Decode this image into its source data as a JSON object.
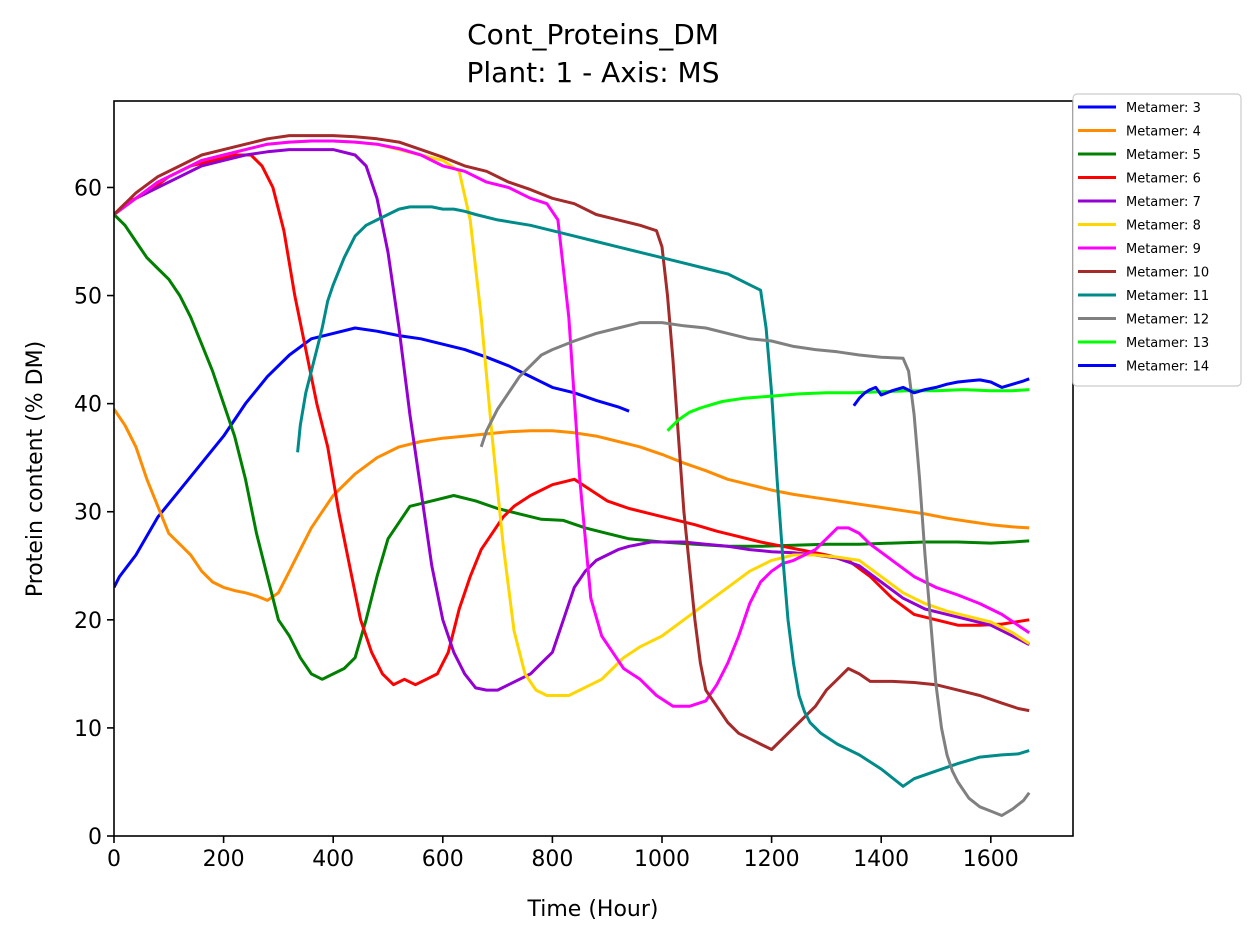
{
  "chart_data": {
    "type": "line",
    "title": "Cont_Proteins_DM",
    "subtitle": "Plant: 1 - Axis: MS",
    "xlabel": "Time (Hour)",
    "ylabel": "Protein content (% DM)",
    "xlim": [
      0,
      1750
    ],
    "ylim": [
      0,
      68
    ],
    "xticks": [
      0,
      200,
      400,
      600,
      800,
      1000,
      1200,
      1400,
      1600
    ],
    "yticks": [
      0,
      10,
      20,
      30,
      40,
      50,
      60
    ],
    "grid": false,
    "legend_position": "outside-top-right",
    "series": [
      {
        "name": "Metamer: 3",
        "color": "#0000ff",
        "x": [
          0,
          10,
          40,
          80,
          120,
          160,
          200,
          240,
          280,
          320,
          360,
          400,
          440,
          480,
          520,
          560,
          600,
          640,
          680,
          720,
          760,
          800,
          840,
          880,
          920,
          940
        ],
        "y": [
          23,
          24,
          26,
          29.5,
          32,
          34.5,
          37,
          40,
          42.5,
          44.5,
          46,
          46.5,
          47,
          46.7,
          46.3,
          46,
          45.5,
          45,
          44.3,
          43.5,
          42.5,
          41.5,
          41,
          40.3,
          39.7,
          39.3
        ]
      },
      {
        "name": "Metamer: 4",
        "color": "#ff8c00",
        "x": [
          0,
          20,
          40,
          60,
          80,
          100,
          120,
          140,
          160,
          180,
          200,
          220,
          240,
          260,
          280,
          300,
          320,
          340,
          360,
          380,
          400,
          440,
          480,
          520,
          560,
          600,
          640,
          680,
          720,
          760,
          800,
          840,
          880,
          920,
          960,
          1000,
          1040,
          1080,
          1120,
          1160,
          1200,
          1240,
          1280,
          1320,
          1360,
          1400,
          1440,
          1480,
          1520,
          1560,
          1600,
          1640,
          1670
        ],
        "y": [
          39.5,
          38,
          36,
          33,
          30.5,
          28,
          27,
          26,
          24.5,
          23.5,
          23,
          22.7,
          22.5,
          22.2,
          21.8,
          22.5,
          24.5,
          26.5,
          28.5,
          30,
          31.5,
          33.5,
          35,
          36,
          36.5,
          36.8,
          37,
          37.2,
          37.4,
          37.5,
          37.5,
          37.3,
          37,
          36.5,
          36,
          35.3,
          34.5,
          33.8,
          33,
          32.5,
          32,
          31.6,
          31.3,
          31,
          30.7,
          30.4,
          30.1,
          29.8,
          29.4,
          29.1,
          28.8,
          28.6,
          28.5
        ]
      },
      {
        "name": "Metamer: 5",
        "color": "#008000",
        "x": [
          0,
          20,
          40,
          60,
          80,
          100,
          120,
          140,
          160,
          180,
          200,
          220,
          240,
          260,
          280,
          300,
          320,
          340,
          360,
          380,
          400,
          420,
          440,
          460,
          480,
          500,
          540,
          580,
          620,
          660,
          700,
          740,
          780,
          820,
          860,
          900,
          940,
          1000,
          1060,
          1120,
          1180,
          1240,
          1300,
          1360,
          1420,
          1480,
          1540,
          1600,
          1640,
          1670
        ],
        "y": [
          57.5,
          56.5,
          55,
          53.5,
          52.5,
          51.5,
          50,
          48,
          45.5,
          43,
          40,
          37,
          33,
          28,
          24,
          20,
          18.5,
          16.5,
          15,
          14.5,
          15,
          15.5,
          16.5,
          20,
          24,
          27.5,
          30.5,
          31,
          31.5,
          31,
          30.3,
          29.8,
          29.3,
          29.2,
          28.5,
          28,
          27.5,
          27.2,
          27,
          26.8,
          26.8,
          26.9,
          27,
          27,
          27.1,
          27.2,
          27.2,
          27.1,
          27.2,
          27.3
        ]
      },
      {
        "name": "Metamer: 6",
        "color": "#ff0000",
        "x": [
          0,
          20,
          60,
          100,
          140,
          180,
          220,
          250,
          270,
          290,
          310,
          330,
          350,
          370,
          390,
          410,
          430,
          450,
          470,
          490,
          510,
          530,
          550,
          570,
          590,
          610,
          630,
          650,
          670,
          690,
          710,
          730,
          760,
          800,
          840,
          870,
          900,
          940,
          980,
          1020,
          1060,
          1100,
          1140,
          1180,
          1220,
          1260,
          1300,
          1340,
          1380,
          1420,
          1460,
          1500,
          1540,
          1580,
          1620,
          1670
        ],
        "y": [
          57.5,
          58.5,
          59.5,
          61,
          62,
          62.5,
          63,
          63,
          62,
          60,
          56,
          50,
          45,
          40,
          36,
          30,
          25,
          20,
          17,
          15,
          14,
          14.5,
          14,
          14.5,
          15,
          17,
          21,
          24,
          26.5,
          28,
          29.5,
          30.5,
          31.5,
          32.5,
          33,
          32,
          31,
          30.3,
          29.8,
          29.3,
          28.8,
          28.2,
          27.7,
          27.2,
          26.8,
          26.4,
          26,
          25.5,
          24,
          22,
          20.5,
          20,
          19.5,
          19.5,
          19.6,
          20
        ]
      },
      {
        "name": "Metamer: 7",
        "color": "#9400d3",
        "x": [
          0,
          40,
          80,
          120,
          160,
          200,
          240,
          280,
          320,
          360,
          400,
          440,
          460,
          480,
          500,
          520,
          540,
          560,
          580,
          600,
          620,
          640,
          660,
          680,
          700,
          720,
          740,
          760,
          780,
          800,
          820,
          840,
          860,
          880,
          900,
          920,
          940,
          960,
          980,
          1000,
          1040,
          1080,
          1120,
          1160,
          1200,
          1240,
          1280,
          1320,
          1360,
          1400,
          1440,
          1480,
          1520,
          1560,
          1600,
          1640,
          1670
        ],
        "y": [
          57.5,
          59,
          60,
          61,
          62,
          62.5,
          63,
          63.3,
          63.5,
          63.5,
          63.5,
          63,
          62,
          59,
          54,
          47,
          39,
          32,
          25,
          20,
          17,
          15,
          13.7,
          13.5,
          13.5,
          14,
          14.5,
          15,
          16,
          17,
          20,
          23,
          24.5,
          25.5,
          26,
          26.5,
          26.8,
          27,
          27.2,
          27.2,
          27.2,
          27,
          26.8,
          26.5,
          26.3,
          26.2,
          26,
          25.7,
          25,
          23.5,
          22,
          21,
          20.5,
          20,
          19.5,
          18.5,
          17.7
        ]
      },
      {
        "name": "Metamer: 8",
        "color": "#ffd700",
        "x": [
          0,
          40,
          80,
          120,
          160,
          200,
          240,
          280,
          320,
          360,
          400,
          440,
          480,
          520,
          560,
          600,
          630,
          650,
          670,
          690,
          710,
          730,
          750,
          770,
          790,
          810,
          830,
          850,
          870,
          890,
          910,
          930,
          960,
          1000,
          1040,
          1080,
          1120,
          1160,
          1200,
          1240,
          1280,
          1320,
          1360,
          1400,
          1440,
          1480,
          1520,
          1560,
          1600,
          1640,
          1670
        ],
        "y": [
          57.5,
          59,
          60.5,
          61.5,
          62.5,
          63,
          63.5,
          64,
          64.2,
          64.3,
          64.3,
          64.2,
          64,
          63.5,
          63,
          62.5,
          61.5,
          57,
          48,
          37,
          27,
          19,
          15,
          13.5,
          13,
          13,
          13,
          13.5,
          14,
          14.5,
          15.5,
          16.5,
          17.5,
          18.5,
          20,
          21.5,
          23,
          24.5,
          25.5,
          26,
          26,
          25.8,
          25.5,
          24,
          22.5,
          21.5,
          20.8,
          20.3,
          19.8,
          18.8,
          17.8
        ]
      },
      {
        "name": "Metamer: 9",
        "color": "#ff00ff",
        "x": [
          0,
          40,
          80,
          120,
          160,
          200,
          240,
          280,
          320,
          360,
          400,
          440,
          480,
          520,
          560,
          600,
          640,
          680,
          720,
          760,
          790,
          810,
          830,
          850,
          870,
          890,
          910,
          930,
          960,
          990,
          1020,
          1050,
          1080,
          1100,
          1120,
          1140,
          1160,
          1180,
          1200,
          1220,
          1240,
          1260,
          1280,
          1300,
          1320,
          1340,
          1360,
          1380,
          1420,
          1460,
          1500,
          1540,
          1580,
          1620,
          1670
        ],
        "y": [
          57.5,
          59,
          60.5,
          61.5,
          62.5,
          63,
          63.5,
          64,
          64.2,
          64.3,
          64.3,
          64.2,
          64,
          63.6,
          63,
          62,
          61.5,
          60.5,
          60,
          59,
          58.5,
          57,
          48,
          33,
          22,
          18.5,
          17,
          15.5,
          14.5,
          13,
          12,
          12,
          12.5,
          14,
          16,
          18.5,
          21.5,
          23.5,
          24.5,
          25.2,
          25.5,
          26,
          26.5,
          27.5,
          28.5,
          28.5,
          28,
          27,
          25.5,
          24,
          23,
          22.3,
          21.5,
          20.5,
          18.8
        ]
      },
      {
        "name": "Metamer: 10",
        "color": "#a52a2a",
        "x": [
          0,
          40,
          80,
          120,
          160,
          200,
          240,
          280,
          320,
          360,
          400,
          440,
          480,
          520,
          560,
          600,
          640,
          680,
          720,
          760,
          800,
          840,
          880,
          920,
          960,
          990,
          1000,
          1010,
          1020,
          1030,
          1040,
          1050,
          1060,
          1070,
          1080,
          1100,
          1120,
          1140,
          1160,
          1180,
          1200,
          1220,
          1240,
          1260,
          1280,
          1300,
          1320,
          1340,
          1360,
          1380,
          1420,
          1460,
          1500,
          1540,
          1580,
          1620,
          1650,
          1670
        ],
        "y": [
          57.5,
          59.5,
          61,
          62,
          63,
          63.5,
          64,
          64.5,
          64.8,
          64.8,
          64.8,
          64.7,
          64.5,
          64.2,
          63.5,
          62.8,
          62,
          61.5,
          60.5,
          59.8,
          59,
          58.5,
          57.5,
          57,
          56.5,
          56,
          54.5,
          50,
          44,
          37,
          30,
          25,
          20,
          16,
          13.5,
          12,
          10.5,
          9.5,
          9,
          8.5,
          8,
          9,
          10,
          11,
          12,
          13.5,
          14.5,
          15.5,
          15,
          14.3,
          14.3,
          14.2,
          14,
          13.5,
          13,
          12.3,
          11.8,
          11.6
        ]
      },
      {
        "name": "Metamer: 11",
        "color": "#008b8b",
        "x": [
          335,
          340,
          350,
          360,
          370,
          380,
          390,
          400,
          420,
          440,
          460,
          480,
          500,
          520,
          540,
          560,
          580,
          600,
          620,
          640,
          660,
          700,
          760,
          800,
          840,
          880,
          920,
          960,
          1000,
          1040,
          1080,
          1120,
          1160,
          1180,
          1190,
          1200,
          1210,
          1220,
          1230,
          1240,
          1250,
          1260,
          1270,
          1290,
          1320,
          1360,
          1400,
          1430,
          1440,
          1460,
          1500,
          1540,
          1580,
          1620,
          1650,
          1670
        ],
        "y": [
          35.5,
          38,
          41,
          43,
          45,
          47,
          49.5,
          51,
          53.5,
          55.5,
          56.5,
          57,
          57.5,
          58,
          58.2,
          58.2,
          58.2,
          58,
          58,
          57.8,
          57.5,
          57,
          56.5,
          56,
          55.5,
          55,
          54.5,
          54,
          53.5,
          53,
          52.5,
          52,
          51,
          50.5,
          47,
          41,
          33,
          26,
          20,
          16,
          13,
          11.5,
          10.5,
          9.5,
          8.5,
          7.5,
          6.2,
          5,
          4.6,
          5.3,
          6,
          6.7,
          7.3,
          7.5,
          7.6,
          7.9
        ]
      },
      {
        "name": "Metamer: 12",
        "color": "#808080",
        "x": [
          670,
          680,
          700,
          720,
          740,
          760,
          780,
          800,
          840,
          880,
          920,
          960,
          1000,
          1040,
          1080,
          1120,
          1160,
          1200,
          1240,
          1280,
          1320,
          1360,
          1400,
          1440,
          1450,
          1460,
          1470,
          1480,
          1490,
          1500,
          1510,
          1520,
          1530,
          1540,
          1560,
          1580,
          1600,
          1620,
          1640,
          1660,
          1670
        ],
        "y": [
          36,
          37.5,
          39.5,
          41,
          42.5,
          43.5,
          44.5,
          45,
          45.8,
          46.5,
          47,
          47.5,
          47.5,
          47.2,
          47,
          46.5,
          46,
          45.8,
          45.3,
          45,
          44.8,
          44.5,
          44.3,
          44.2,
          43,
          39,
          33,
          26,
          20,
          14,
          10,
          7.5,
          6,
          5,
          3.5,
          2.7,
          2.3,
          1.9,
          2.5,
          3.3,
          4
        ]
      },
      {
        "name": "Metamer: 13",
        "color": "#00ff00",
        "x": [
          1010,
          1030,
          1050,
          1070,
          1090,
          1110,
          1150,
          1200,
          1250,
          1300,
          1350,
          1400,
          1450,
          1500,
          1550,
          1600,
          1640,
          1670
        ],
        "y": [
          37.5,
          38.5,
          39.2,
          39.6,
          39.9,
          40.2,
          40.5,
          40.7,
          40.9,
          41,
          41,
          41.1,
          41.2,
          41.2,
          41.3,
          41.2,
          41.2,
          41.3
        ]
      },
      {
        "name": "Metamer: 14",
        "color": "#0000ff",
        "x": [
          1350,
          1360,
          1370,
          1380,
          1390,
          1400,
          1420,
          1440,
          1460,
          1480,
          1500,
          1520,
          1540,
          1560,
          1580,
          1600,
          1620,
          1640,
          1660,
          1670
        ],
        "y": [
          39.8,
          40.5,
          41,
          41.3,
          41.5,
          40.8,
          41.2,
          41.5,
          41,
          41.3,
          41.5,
          41.8,
          42,
          42.1,
          42.2,
          42,
          41.5,
          41.8,
          42.1,
          42.3
        ]
      }
    ]
  }
}
